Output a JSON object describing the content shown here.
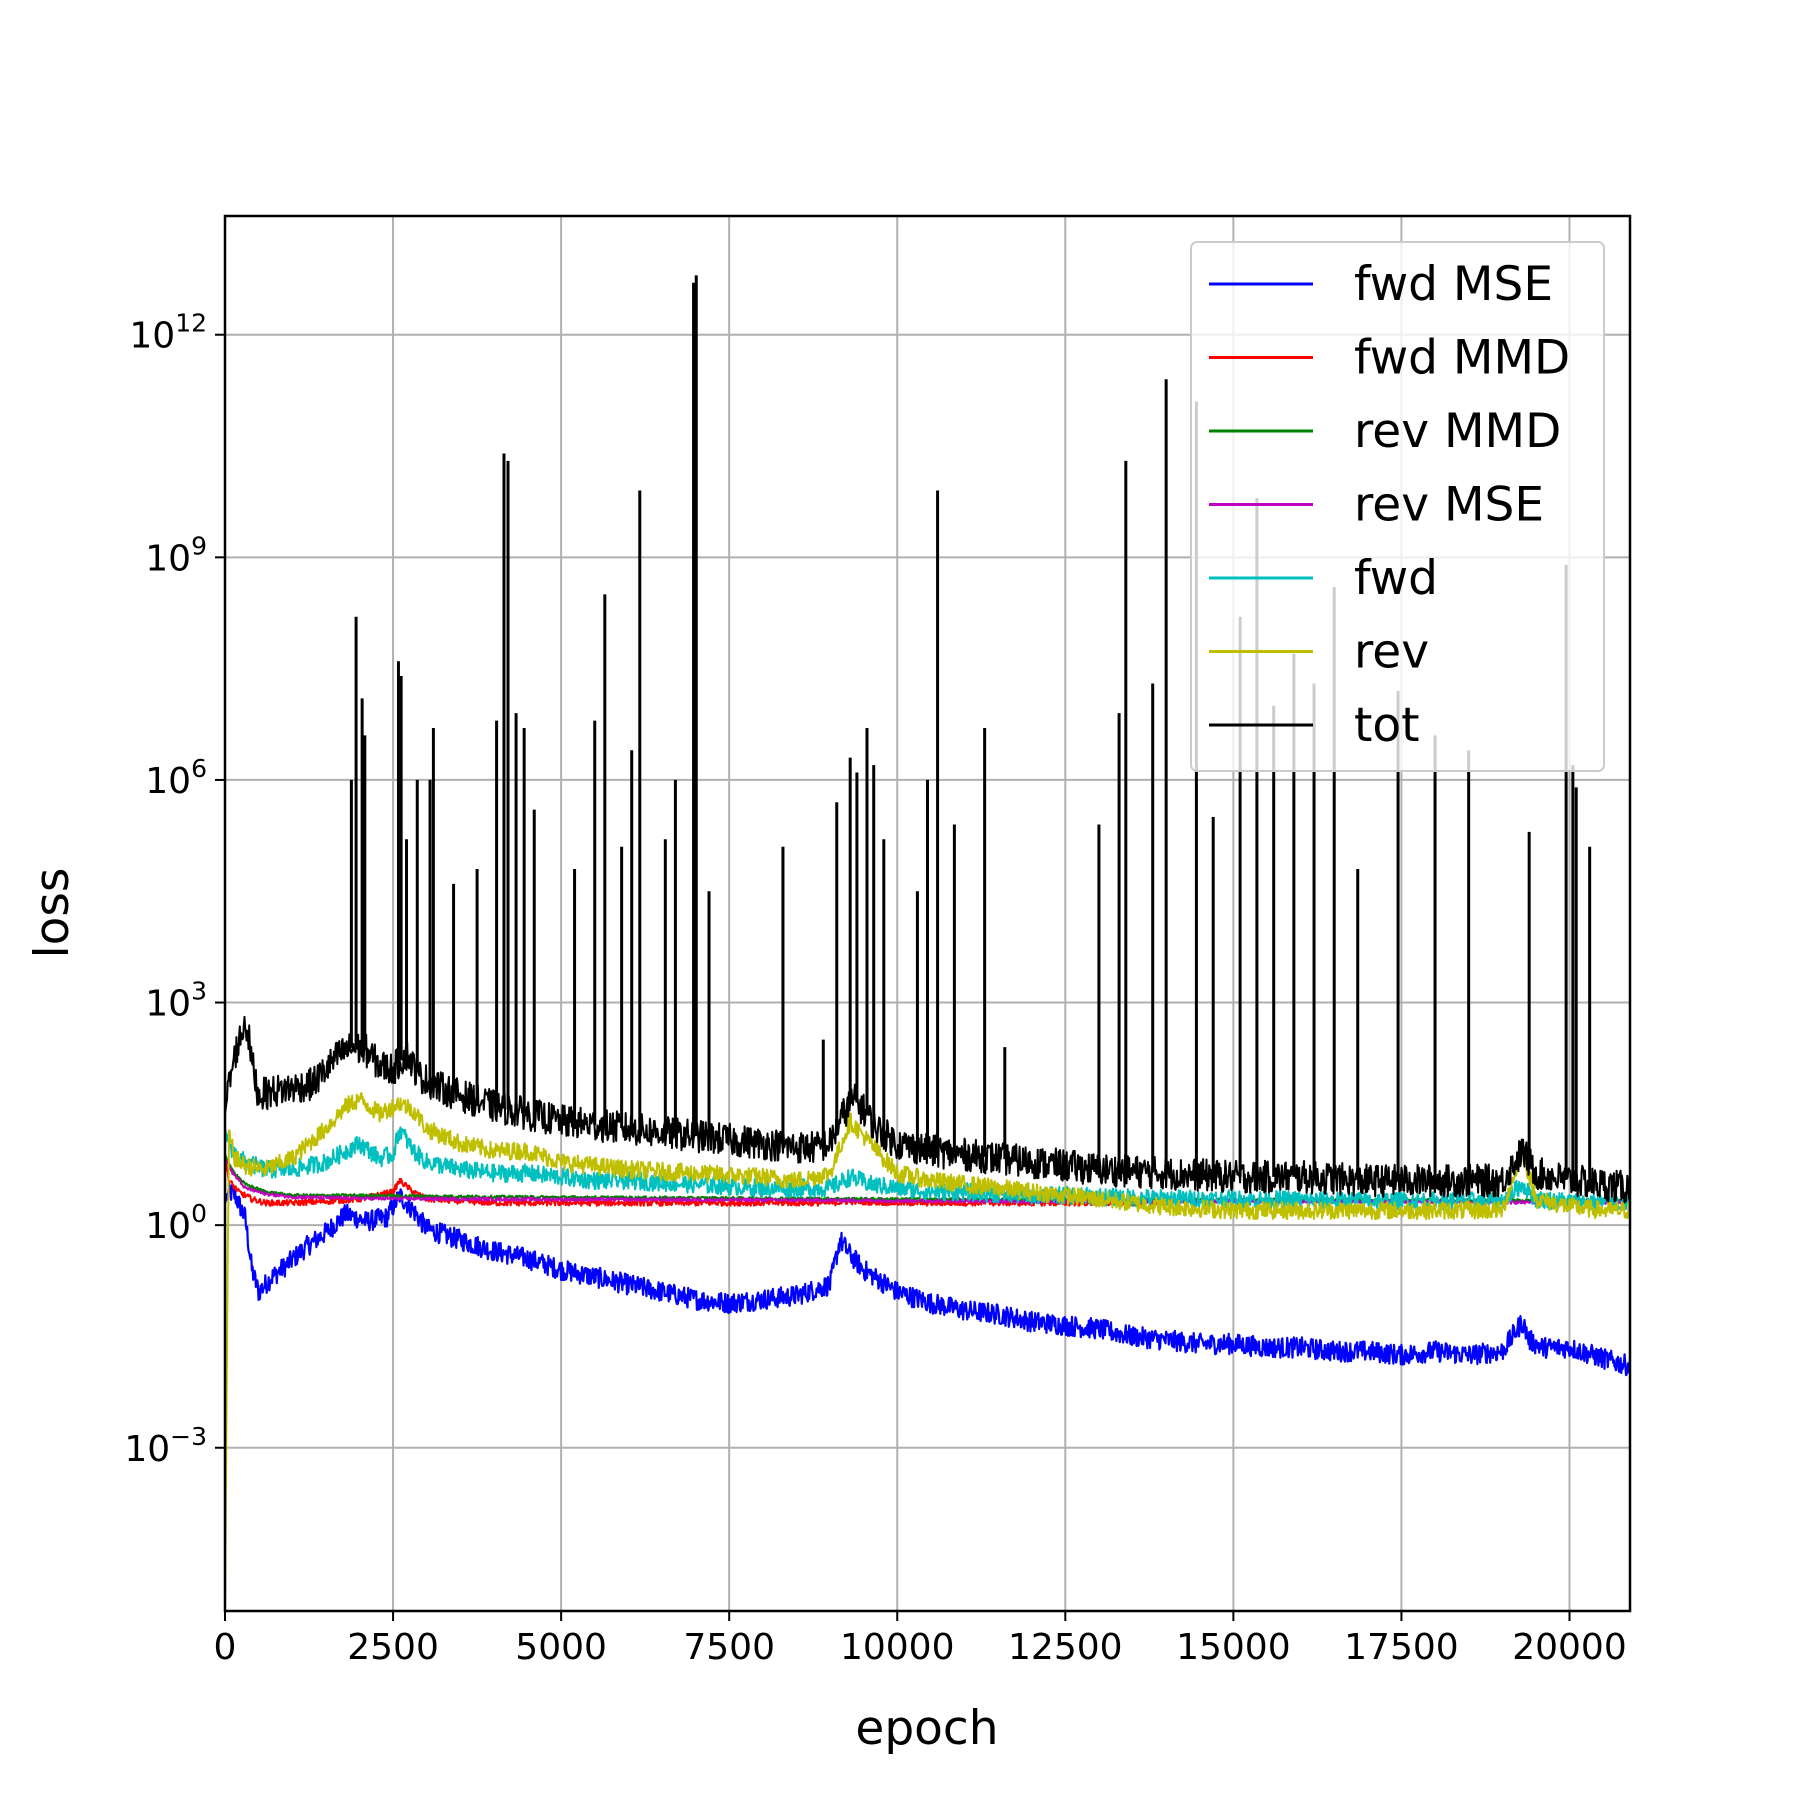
{
  "chart_data": {
    "type": "line",
    "title": "",
    "xlabel": "epoch",
    "ylabel": "loss",
    "xlim": [
      0,
      20900
    ],
    "ylim_log10": [
      -5.2,
      13.6
    ],
    "y_scale": "log",
    "grid": true,
    "legend_placement": "upper-right",
    "x_ticks": [
      {
        "value": 0,
        "label": "0"
      },
      {
        "value": 2500,
        "label": "2500"
      },
      {
        "value": 5000,
        "label": "5000"
      },
      {
        "value": 7500,
        "label": "7500"
      },
      {
        "value": 10000,
        "label": "10000"
      },
      {
        "value": 12500,
        "label": "12500"
      },
      {
        "value": 15000,
        "label": "15000"
      },
      {
        "value": 17500,
        "label": "17500"
      },
      {
        "value": 20000,
        "label": "20000"
      }
    ],
    "y_ticks": [
      {
        "log10": 12,
        "base": "10",
        "exp": "12"
      },
      {
        "log10": 9,
        "base": "10",
        "exp": "9"
      },
      {
        "log10": 6,
        "base": "10",
        "exp": "6"
      },
      {
        "log10": 3,
        "base": "10",
        "exp": "3"
      },
      {
        "log10": 0,
        "base": "10",
        "exp": "0"
      },
      {
        "log10": -3,
        "base": "10",
        "exp": "−3"
      }
    ],
    "series": [
      {
        "name": "fwd MSE",
        "color": "#0000ff",
        "x": [
          0,
          60,
          150,
          300,
          400,
          500,
          700,
          900,
          1200,
          1500,
          1800,
          2100,
          2400,
          2600,
          2800,
          3000,
          3500,
          4000,
          4500,
          5000,
          5500,
          6000,
          6500,
          7000,
          7500,
          8000,
          8500,
          9000,
          9150,
          9300,
          9500,
          10000,
          10500,
          11000,
          11500,
          12000,
          12500,
          13000,
          13500,
          14000,
          14500,
          15000,
          15500,
          16000,
          16500,
          17000,
          17500,
          18000,
          18500,
          19000,
          19300,
          19400,
          19600,
          20000,
          20500,
          20900
        ],
        "log10": [
          0.3,
          0.45,
          0.4,
          0.1,
          -0.6,
          -0.9,
          -0.7,
          -0.55,
          -0.3,
          -0.1,
          0.15,
          0.05,
          0.1,
          0.4,
          0.2,
          -0.05,
          -0.2,
          -0.35,
          -0.45,
          -0.6,
          -0.7,
          -0.8,
          -0.9,
          -1.0,
          -1.05,
          -1.0,
          -0.95,
          -0.8,
          -0.2,
          -0.4,
          -0.6,
          -0.9,
          -1.05,
          -1.15,
          -1.2,
          -1.3,
          -1.35,
          -1.4,
          -1.5,
          -1.55,
          -1.6,
          -1.6,
          -1.65,
          -1.65,
          -1.7,
          -1.7,
          -1.75,
          -1.7,
          -1.75,
          -1.7,
          -1.3,
          -1.55,
          -1.65,
          -1.65,
          -1.8,
          -1.9
        ]
      },
      {
        "name": "fwd MMD",
        "color": "#ff0000",
        "x": [
          0,
          60,
          200,
          400,
          600,
          1000,
          1500,
          2000,
          2500,
          2600,
          2800,
          3000,
          4000,
          5000,
          6000,
          7000,
          8000,
          9000,
          9300,
          10000,
          11000,
          12000,
          13000,
          14000
        ],
        "log10": [
          0.9,
          0.6,
          0.45,
          0.35,
          0.3,
          0.3,
          0.32,
          0.35,
          0.45,
          0.6,
          0.45,
          0.35,
          0.3,
          0.3,
          0.3,
          0.3,
          0.3,
          0.3,
          0.32,
          0.3,
          0.3,
          0.3,
          0.3,
          0.3
        ]
      },
      {
        "name": "rev MMD",
        "color": "#008000",
        "x": [
          0,
          100,
          300,
          600,
          1000,
          2000,
          4000,
          8000,
          12000,
          16000,
          20900
        ],
        "log10": [
          0.95,
          0.75,
          0.55,
          0.45,
          0.4,
          0.4,
          0.38,
          0.36,
          0.34,
          0.34,
          0.33
        ]
      },
      {
        "name": "rev MSE",
        "color": "#bf00bf",
        "x": [
          0,
          100,
          300,
          600,
          1000,
          2000,
          4000,
          8000,
          12000,
          16000,
          20900
        ],
        "log10": [
          0.9,
          0.72,
          0.5,
          0.42,
          0.38,
          0.36,
          0.35,
          0.34,
          0.32,
          0.32,
          0.3
        ]
      },
      {
        "name": "fwd",
        "color": "#00bfbf",
        "x": [
          0,
          60,
          150,
          300,
          600,
          1000,
          1500,
          1800,
          2000,
          2300,
          2500,
          2600,
          2800,
          3000,
          3500,
          4000,
          4500,
          5000,
          5500,
          6000,
          7000,
          8000,
          9000,
          9300,
          9600,
          10000,
          10500,
          11000,
          11500,
          12000,
          12500,
          13000,
          14000,
          15000,
          16000,
          17000,
          18000,
          19000,
          19300,
          19500,
          20000,
          20500,
          20900
        ],
        "log10": [
          1.3,
          1.1,
          0.95,
          0.85,
          0.75,
          0.75,
          0.85,
          1.0,
          1.1,
          0.9,
          0.95,
          1.3,
          1.0,
          0.85,
          0.75,
          0.7,
          0.7,
          0.65,
          0.6,
          0.6,
          0.55,
          0.5,
          0.5,
          0.65,
          0.55,
          0.5,
          0.45,
          0.45,
          0.42,
          0.4,
          0.4,
          0.38,
          0.36,
          0.35,
          0.34,
          0.33,
          0.33,
          0.33,
          0.55,
          0.35,
          0.32,
          0.3,
          0.3
        ]
      },
      {
        "name": "rev",
        "color": "#bfbf00",
        "x": [
          0,
          40,
          60,
          150,
          300,
          600,
          1000,
          1500,
          1800,
          2000,
          2300,
          2600,
          2800,
          3000,
          3500,
          4000,
          4500,
          5000,
          5500,
          6000,
          7000,
          8000,
          8500,
          9000,
          9300,
          9600,
          10000,
          10500,
          11000,
          12000,
          13000,
          14000,
          15000,
          16000,
          17000,
          18000,
          19000,
          19300,
          19500,
          20000,
          20500,
          20900
        ],
        "log10": [
          -5.2,
          -0.5,
          1.2,
          0.9,
          0.8,
          0.75,
          0.9,
          1.3,
          1.6,
          1.7,
          1.5,
          1.65,
          1.55,
          1.3,
          1.1,
          1.0,
          1.0,
          0.85,
          0.8,
          0.75,
          0.7,
          0.65,
          0.6,
          0.7,
          1.4,
          1.1,
          0.7,
          0.6,
          0.55,
          0.45,
          0.35,
          0.25,
          0.2,
          0.2,
          0.2,
          0.2,
          0.2,
          1.0,
          0.35,
          0.25,
          0.2,
          0.2
        ]
      },
      {
        "name": "tot",
        "color": "#000000",
        "x": [
          0,
          60,
          150,
          250,
          300,
          350,
          400,
          500,
          700,
          1000,
          1300,
          1500,
          1700,
          1900,
          2100,
          2300,
          2500,
          2700,
          2900,
          3200,
          3500,
          4000,
          4500,
          5000,
          5500,
          6000,
          6500,
          7000,
          7500,
          8000,
          8500,
          8800,
          9000,
          9200,
          9350,
          9500,
          9700,
          10000,
          10500,
          11000,
          11500,
          12000,
          12500,
          13000,
          14000,
          15000,
          16000,
          17000,
          18000,
          19000,
          19300,
          19500,
          20000,
          20500,
          20900
        ],
        "log10": [
          1.5,
          1.9,
          2.3,
          2.6,
          2.75,
          2.55,
          2.2,
          1.75,
          1.8,
          1.85,
          1.9,
          2.1,
          2.3,
          2.4,
          2.35,
          2.15,
          2.1,
          2.3,
          2.0,
          1.85,
          1.75,
          1.6,
          1.5,
          1.4,
          1.35,
          1.3,
          1.25,
          1.2,
          1.15,
          1.1,
          1.05,
          1.05,
          1.1,
          1.5,
          1.7,
          1.55,
          1.3,
          1.1,
          1.0,
          0.95,
          0.9,
          0.85,
          0.8,
          0.75,
          0.7,
          0.65,
          0.65,
          0.6,
          0.6,
          0.6,
          1.0,
          0.7,
          0.6,
          0.55,
          0.5
        ]
      }
    ],
    "tot_spikes": [
      {
        "x": 1880,
        "log10": 6.0
      },
      {
        "x": 1950,
        "log10": 8.2
      },
      {
        "x": 2040,
        "log10": 7.1
      },
      {
        "x": 2080,
        "log10": 6.6
      },
      {
        "x": 2580,
        "log10": 7.6
      },
      {
        "x": 2620,
        "log10": 7.4
      },
      {
        "x": 2700,
        "log10": 5.2
      },
      {
        "x": 2860,
        "log10": 6.0
      },
      {
        "x": 3050,
        "log10": 6.0
      },
      {
        "x": 3100,
        "log10": 6.7
      },
      {
        "x": 3400,
        "log10": 4.6
      },
      {
        "x": 3750,
        "log10": 4.8
      },
      {
        "x": 4040,
        "log10": 6.8
      },
      {
        "x": 4150,
        "log10": 10.4
      },
      {
        "x": 4210,
        "log10": 10.3
      },
      {
        "x": 4330,
        "log10": 6.9
      },
      {
        "x": 4450,
        "log10": 6.7
      },
      {
        "x": 4600,
        "log10": 5.6
      },
      {
        "x": 5200,
        "log10": 4.8
      },
      {
        "x": 5500,
        "log10": 6.8
      },
      {
        "x": 5650,
        "log10": 8.5
      },
      {
        "x": 5900,
        "log10": 5.1
      },
      {
        "x": 6050,
        "log10": 6.4
      },
      {
        "x": 6170,
        "log10": 9.9
      },
      {
        "x": 6550,
        "log10": 5.2
      },
      {
        "x": 6700,
        "log10": 6.0
      },
      {
        "x": 6970,
        "log10": 12.7
      },
      {
        "x": 7010,
        "log10": 12.8
      },
      {
        "x": 7200,
        "log10": 4.5
      },
      {
        "x": 8300,
        "log10": 5.1
      },
      {
        "x": 8900,
        "log10": 2.5
      },
      {
        "x": 9100,
        "log10": 5.7
      },
      {
        "x": 9300,
        "log10": 6.3
      },
      {
        "x": 9400,
        "log10": 6.1
      },
      {
        "x": 9550,
        "log10": 6.7
      },
      {
        "x": 9650,
        "log10": 6.2
      },
      {
        "x": 9800,
        "log10": 5.2
      },
      {
        "x": 10300,
        "log10": 4.5
      },
      {
        "x": 10450,
        "log10": 6.0
      },
      {
        "x": 10600,
        "log10": 9.9
      },
      {
        "x": 10850,
        "log10": 5.4
      },
      {
        "x": 11300,
        "log10": 6.7
      },
      {
        "x": 11600,
        "log10": 2.4
      },
      {
        "x": 13000,
        "log10": 5.4
      },
      {
        "x": 13300,
        "log10": 6.9
      },
      {
        "x": 13400,
        "log10": 10.3
      },
      {
        "x": 13800,
        "log10": 7.3
      },
      {
        "x": 14000,
        "log10": 11.4
      },
      {
        "x": 14450,
        "log10": 11.1
      },
      {
        "x": 14700,
        "log10": 5.5
      },
      {
        "x": 15100,
        "log10": 8.2
      },
      {
        "x": 15350,
        "log10": 9.8
      },
      {
        "x": 15600,
        "log10": 7.0
      },
      {
        "x": 15900,
        "log10": 7.7
      },
      {
        "x": 16200,
        "log10": 7.3
      },
      {
        "x": 16500,
        "log10": 8.6
      },
      {
        "x": 16850,
        "log10": 4.8
      },
      {
        "x": 17450,
        "log10": 7.2
      },
      {
        "x": 18000,
        "log10": 6.6
      },
      {
        "x": 18500,
        "log10": 6.4
      },
      {
        "x": 19400,
        "log10": 5.3
      },
      {
        "x": 19950,
        "log10": 8.9
      },
      {
        "x": 20050,
        "log10": 6.2
      },
      {
        "x": 20100,
        "log10": 5.9
      },
      {
        "x": 20300,
        "log10": 5.1
      }
    ]
  }
}
